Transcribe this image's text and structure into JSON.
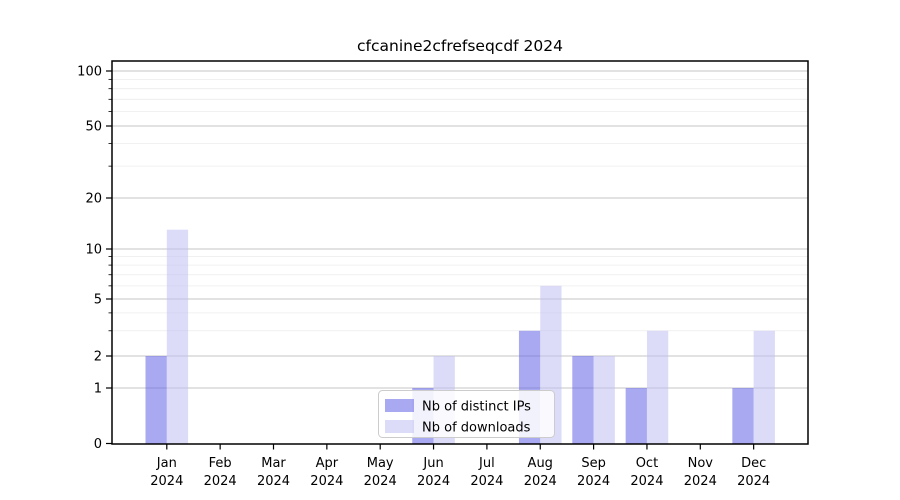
{
  "title": "cfcanine2cfrefseqcdf 2024",
  "chart_data": {
    "type": "bar",
    "categories": [
      "Jan",
      "Feb",
      "Mar",
      "Apr",
      "May",
      "Jun",
      "Jul",
      "Aug",
      "Sep",
      "Oct",
      "Nov",
      "Dec"
    ],
    "year": "2024",
    "series": [
      {
        "name": "Nb of distinct IPs",
        "color": "#6262e8",
        "fill_opacity": 0.55,
        "rendered_color": "#a8a8f2",
        "values": [
          2,
          0,
          0,
          0,
          0,
          1,
          0,
          3,
          2,
          1,
          0,
          1
        ]
      },
      {
        "name": "Nb of downloads",
        "color": "#bfbff4",
        "fill_opacity": 0.55,
        "rendered_color": "#dcdcf9",
        "values": [
          13,
          0,
          0,
          0,
          0,
          2,
          0,
          6,
          2,
          3,
          0,
          3
        ]
      }
    ],
    "yticks": [
      0,
      1,
      2,
      5,
      10,
      20,
      50,
      100
    ],
    "minor_yticks": [
      3,
      4,
      6,
      7,
      8,
      9,
      30,
      40,
      60,
      70,
      80,
      90
    ],
    "ylim": [
      0,
      110
    ],
    "scale": "symlog",
    "grid": true,
    "legend_position": "lower center",
    "major_grid_color": "#c6c6c6",
    "minor_grid_color": "#ececec"
  }
}
